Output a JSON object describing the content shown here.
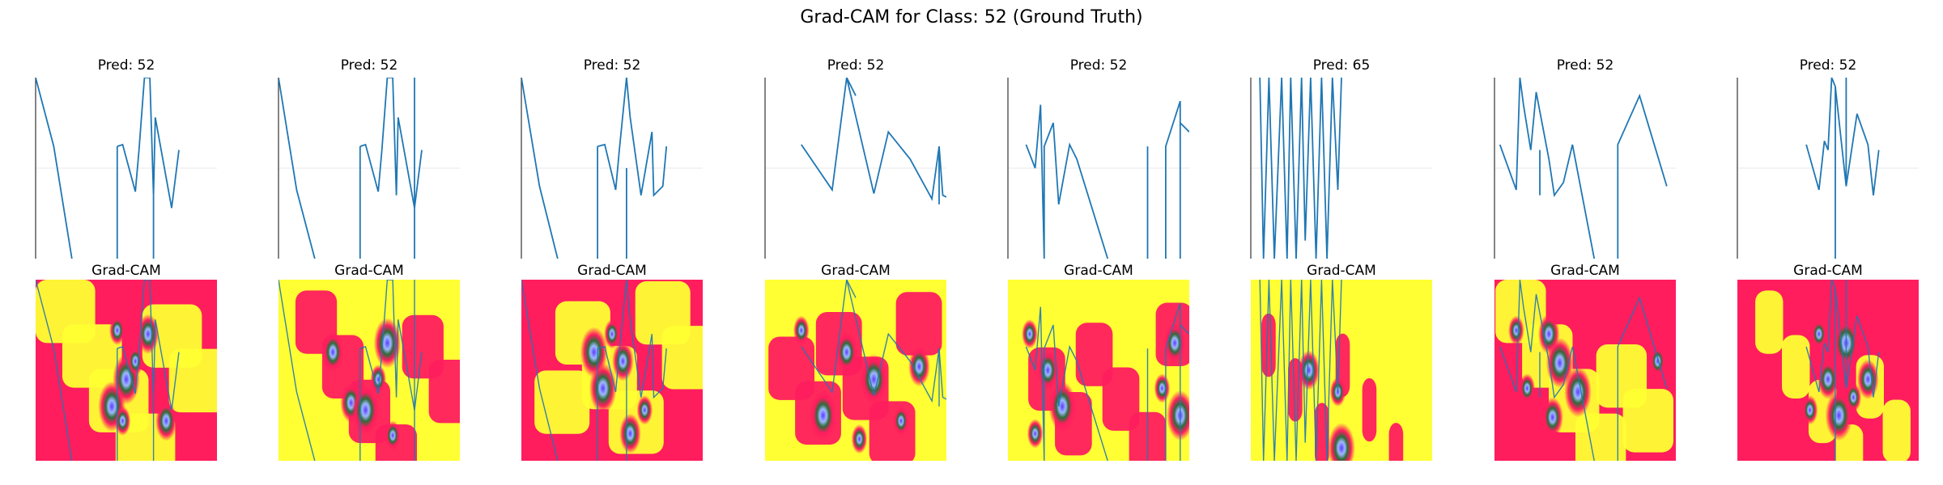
{
  "figure": {
    "title": "Grad-CAM for Class: 52 (Ground Truth)"
  },
  "colors": {
    "line": "#1f77b4",
    "cam_hot": "#ff1d5e",
    "cam_mid": "#ffff33",
    "cam_cool": "#2f6b3a",
    "cam_core": "#5b3cff",
    "grid": "#e8e8e8"
  },
  "chart_data": {
    "type": "line",
    "panels": [
      {
        "top_title": "Pred: 52",
        "bottom_title": "Grad-CAM",
        "heat_bg": "hot",
        "segments": [
          [
            [
              0.0,
              1.0
            ],
            [
              0.1,
              0.62
            ],
            [
              0.2,
              0.0
            ]
          ],
          [
            [
              0.45,
              0.62
            ],
            [
              0.48,
              0.63
            ],
            [
              0.55,
              0.37
            ],
            [
              0.57,
              0.6
            ],
            [
              0.6,
              1.0
            ],
            [
              0.62,
              1.0
            ],
            [
              0.63,
              1.0
            ],
            [
              0.65,
              0.35
            ],
            [
              0.66,
              0.78
            ],
            [
              0.75,
              0.28
            ],
            [
              0.79,
              0.6
            ]
          ],
          [
            [
              0.45,
              0.0
            ],
            [
              0.45,
              0.62
            ]
          ],
          [
            [
              0.65,
              0.0
            ],
            [
              0.65,
              0.35
            ]
          ]
        ],
        "blobs": [
          [
            0.45,
            0.28
          ],
          [
            0.62,
            0.3
          ],
          [
            0.5,
            0.55
          ],
          [
            0.55,
            0.45
          ],
          [
            0.72,
            0.78
          ],
          [
            0.42,
            0.7
          ],
          [
            0.48,
            0.78
          ]
        ],
        "hot_fraction": 0.45
      },
      {
        "top_title": "Pred: 52",
        "bottom_title": "Grad-CAM",
        "heat_bg": "mid",
        "segments": [
          [
            [
              0.0,
              1.0
            ],
            [
              0.1,
              0.38
            ],
            [
              0.2,
              0.0
            ]
          ],
          [
            [
              0.45,
              0.62
            ],
            [
              0.48,
              0.63
            ],
            [
              0.55,
              0.37
            ],
            [
              0.57,
              0.6
            ],
            [
              0.6,
              1.0
            ],
            [
              0.62,
              1.0
            ],
            [
              0.63,
              1.0
            ],
            [
              0.65,
              0.35
            ],
            [
              0.66,
              0.78
            ],
            [
              0.75,
              0.28
            ],
            [
              0.79,
              0.6
            ]
          ],
          [
            [
              0.45,
              0.0
            ],
            [
              0.45,
              0.62
            ]
          ],
          [
            [
              0.75,
              1.0
            ],
            [
              0.75,
              0.0
            ]
          ]
        ],
        "blobs": [
          [
            0.55,
            0.55
          ],
          [
            0.4,
            0.68
          ],
          [
            0.48,
            0.72
          ],
          [
            0.63,
            0.86
          ],
          [
            0.3,
            0.4
          ],
          [
            0.6,
            0.35
          ]
        ],
        "hot_fraction": 0.35
      },
      {
        "top_title": "Pred: 52",
        "bottom_title": "Grad-CAM",
        "heat_bg": "hot",
        "segments": [
          [
            [
              0.0,
              1.0
            ],
            [
              0.1,
              0.4
            ],
            [
              0.2,
              0.0
            ]
          ],
          [
            [
              0.42,
              0.62
            ],
            [
              0.46,
              0.63
            ],
            [
              0.52,
              0.38
            ],
            [
              0.54,
              0.6
            ],
            [
              0.58,
              1.0
            ],
            [
              0.6,
              0.78
            ],
            [
              0.66,
              0.35
            ],
            [
              0.72,
              0.7
            ],
            [
              0.73,
              0.35
            ],
            [
              0.78,
              0.4
            ],
            [
              0.8,
              0.62
            ]
          ],
          [
            [
              0.42,
              0.0
            ],
            [
              0.42,
              0.62
            ]
          ],
          [
            [
              0.58,
              0.0
            ],
            [
              0.58,
              0.5
            ]
          ]
        ],
        "blobs": [
          [
            0.5,
            0.3
          ],
          [
            0.56,
            0.45
          ],
          [
            0.45,
            0.6
          ],
          [
            0.68,
            0.72
          ],
          [
            0.6,
            0.85
          ],
          [
            0.4,
            0.4
          ]
        ],
        "hot_fraction": 0.5
      },
      {
        "top_title": "Pred: 52",
        "bottom_title": "Grad-CAM",
        "heat_bg": "mid",
        "segments": [
          [
            [
              0.2,
              0.63
            ],
            [
              0.37,
              0.38
            ],
            [
              0.45,
              1.0
            ],
            [
              0.6,
              0.36
            ],
            [
              0.68,
              0.7
            ],
            [
              0.8,
              0.55
            ],
            [
              0.92,
              0.33
            ],
            [
              0.96,
              0.62
            ],
            [
              0.98,
              0.35
            ],
            [
              1.0,
              0.34
            ]
          ],
          [
            [
              0.45,
              1.0
            ],
            [
              0.5,
              0.9
            ]
          ],
          [
            [
              0.96,
              0.3
            ],
            [
              0.96,
              0.62
            ]
          ]
        ],
        "blobs": [
          [
            0.2,
            0.28
          ],
          [
            0.45,
            0.4
          ],
          [
            0.6,
            0.55
          ],
          [
            0.75,
            0.78
          ],
          [
            0.85,
            0.48
          ],
          [
            0.32,
            0.75
          ],
          [
            0.52,
            0.88
          ]
        ],
        "hot_fraction": 0.4
      },
      {
        "top_title": "Pred: 52",
        "bottom_title": "Grad-CAM",
        "heat_bg": "mid",
        "segments": [
          [
            [
              0.1,
              0.63
            ],
            [
              0.15,
              0.5
            ],
            [
              0.18,
              0.85
            ],
            [
              0.2,
              0.0
            ],
            [
              0.2,
              0.62
            ],
            [
              0.25,
              0.75
            ],
            [
              0.28,
              0.3
            ],
            [
              0.34,
              0.63
            ],
            [
              0.38,
              0.55
            ],
            [
              0.55,
              0.0
            ]
          ],
          [
            [
              0.77,
              0.62
            ],
            [
              0.77,
              0.0
            ]
          ],
          [
            [
              0.87,
              0.0
            ],
            [
              0.87,
              0.62
            ],
            [
              0.95,
              0.87
            ],
            [
              0.95,
              0.0
            ]
          ],
          [
            [
              0.95,
              0.75
            ],
            [
              1.0,
              0.7
            ]
          ]
        ],
        "blobs": [
          [
            0.12,
            0.3
          ],
          [
            0.22,
            0.5
          ],
          [
            0.3,
            0.7
          ],
          [
            0.85,
            0.6
          ],
          [
            0.92,
            0.35
          ],
          [
            0.95,
            0.75
          ],
          [
            0.15,
            0.85
          ]
        ],
        "hot_fraction": 0.3
      },
      {
        "top_title": "Pred: 65",
        "bottom_title": "Grad-CAM",
        "heat_bg": "mid",
        "segments": [
          [
            [
              0.05,
              1.0
            ],
            [
              0.07,
              0.0
            ],
            [
              0.1,
              1.0
            ],
            [
              0.13,
              0.0
            ],
            [
              0.17,
              1.0
            ],
            [
              0.2,
              0.0
            ],
            [
              0.22,
              1.0
            ],
            [
              0.25,
              0.0
            ],
            [
              0.28,
              1.0
            ],
            [
              0.3,
              0.1
            ],
            [
              0.33,
              1.0
            ],
            [
              0.36,
              0.0
            ],
            [
              0.39,
              1.0
            ],
            [
              0.42,
              0.0
            ],
            [
              0.45,
              1.0
            ],
            [
              0.48,
              0.38
            ],
            [
              0.5,
              1.0
            ]
          ]
        ],
        "blobs": [
          [
            0.48,
            0.62
          ],
          [
            0.32,
            0.5
          ],
          [
            0.5,
            0.93
          ]
        ],
        "hot_fraction": 0.05
      },
      {
        "top_title": "Pred: 52",
        "bottom_title": "Grad-CAM",
        "heat_bg": "hot",
        "segments": [
          [
            [
              0.03,
              0.63
            ],
            [
              0.12,
              0.38
            ],
            [
              0.14,
              1.0
            ],
            [
              0.16,
              0.85
            ],
            [
              0.2,
              0.6
            ],
            [
              0.23,
              0.92
            ],
            [
              0.3,
              0.55
            ],
            [
              0.33,
              0.35
            ],
            [
              0.38,
              0.42
            ],
            [
              0.43,
              0.63
            ],
            [
              0.55,
              0.0
            ]
          ],
          [
            [
              0.25,
              0.35
            ],
            [
              0.25,
              0.6
            ]
          ],
          [
            [
              0.68,
              0.0
            ],
            [
              0.68,
              0.63
            ],
            [
              0.8,
              0.9
            ],
            [
              0.95,
              0.4
            ]
          ]
        ],
        "blobs": [
          [
            0.12,
            0.28
          ],
          [
            0.3,
            0.3
          ],
          [
            0.36,
            0.46
          ],
          [
            0.18,
            0.6
          ],
          [
            0.32,
            0.76
          ],
          [
            0.46,
            0.62
          ],
          [
            0.9,
            0.45
          ]
        ],
        "hot_fraction": 0.55
      },
      {
        "top_title": "Pred: 52",
        "bottom_title": "Grad-CAM",
        "heat_bg": "hot",
        "segments": [
          [
            [
              0.38,
              0.63
            ],
            [
              0.45,
              0.38
            ],
            [
              0.48,
              0.65
            ],
            [
              0.5,
              0.6
            ],
            [
              0.52,
              1.0
            ],
            [
              0.54,
              0.95
            ],
            [
              0.6,
              0.4
            ],
            [
              0.66,
              0.8
            ],
            [
              0.72,
              0.63
            ],
            [
              0.75,
              0.35
            ],
            [
              0.78,
              0.6
            ]
          ],
          [
            [
              0.54,
              0.0
            ],
            [
              0.54,
              0.95
            ]
          ],
          [
            [
              0.6,
              1.0
            ],
            [
              0.6,
              0.4
            ]
          ]
        ],
        "blobs": [
          [
            0.45,
            0.3
          ],
          [
            0.5,
            0.55
          ],
          [
            0.6,
            0.35
          ],
          [
            0.64,
            0.65
          ],
          [
            0.72,
            0.55
          ],
          [
            0.56,
            0.75
          ],
          [
            0.4,
            0.72
          ]
        ],
        "hot_fraction": 0.8
      }
    ]
  }
}
